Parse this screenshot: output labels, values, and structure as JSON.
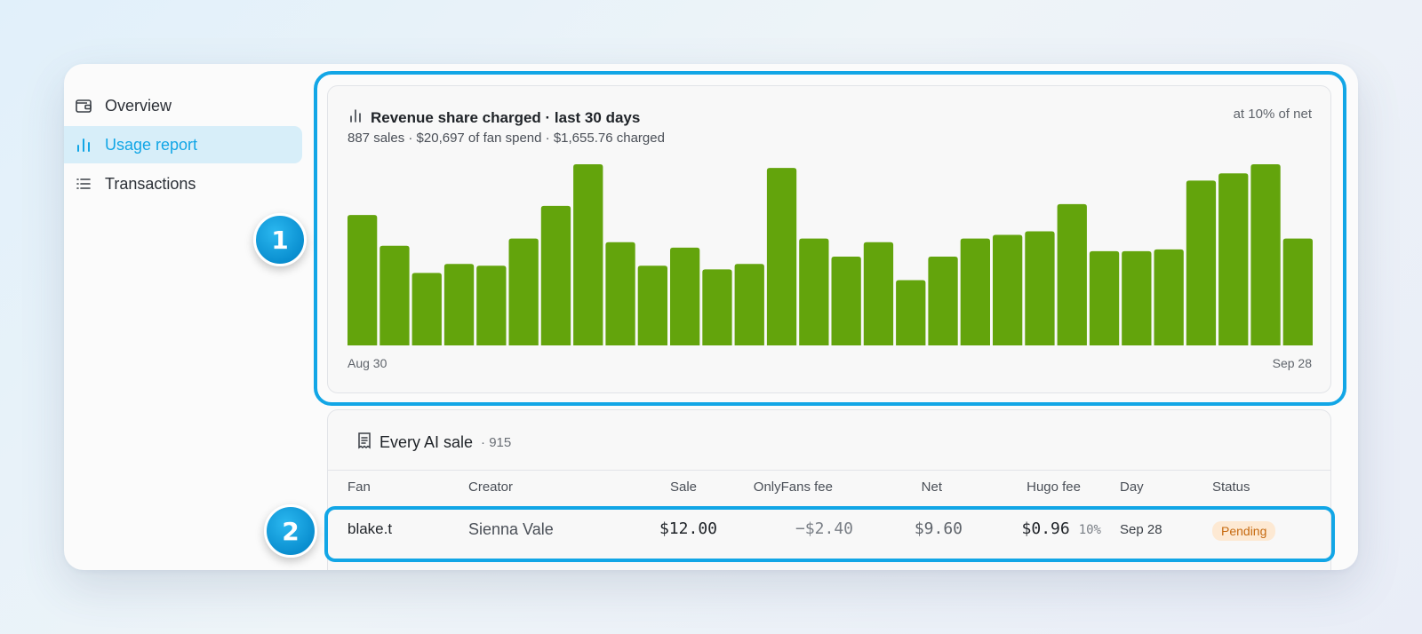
{
  "sidebar": {
    "items": [
      {
        "label": "Overview",
        "icon": "wallet-icon",
        "active": false
      },
      {
        "label": "Usage report",
        "icon": "bar-chart-icon",
        "active": true
      },
      {
        "label": "Transactions",
        "icon": "list-icon",
        "active": false
      }
    ]
  },
  "chart_card": {
    "icon": "bar-chart-icon",
    "title": "Revenue share charged · last 30 days",
    "subtitle": "887 sales · $20,697 of fan spend · $1,655.76 charged",
    "note": "at 10% of net"
  },
  "chart_data": {
    "type": "bar",
    "title": "Revenue share charged · last 30 days",
    "x_start_label": "Aug 30",
    "x_end_label": "Sep 28",
    "bar_color": "#63a40c",
    "values": [
      72,
      55,
      40,
      45,
      44,
      59,
      77,
      100,
      57,
      44,
      54,
      42,
      45,
      98,
      59,
      49,
      57,
      36,
      49,
      59,
      61,
      63,
      78,
      52,
      52,
      53,
      91,
      95,
      100,
      59
    ],
    "max": 100
  },
  "table_card": {
    "icon": "receipt-icon",
    "title": "Every AI sale",
    "count": "· 915",
    "columns": [
      "Fan",
      "Creator",
      "Sale",
      "OnlyFans fee",
      "Net",
      "Hugo fee",
      "Day",
      "Status"
    ],
    "rows": [
      {
        "fan": "blake.t",
        "creator": "Sienna Vale",
        "sale": "$12.00",
        "of_fee": "−$2.40",
        "net": "$9.60",
        "hugo_fee": "$0.96",
        "hugo_pct": "10%",
        "day": "Sep 28",
        "status": "Pending"
      }
    ]
  },
  "annotations": {
    "markers": [
      "1",
      "2"
    ],
    "accent_color": "#12a6e6"
  }
}
